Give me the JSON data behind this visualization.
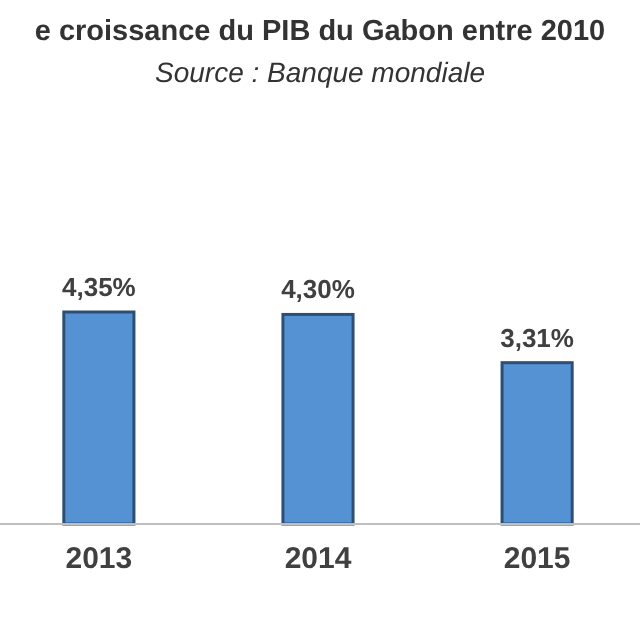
{
  "chart_data": {
    "type": "bar",
    "title": "e croissance du PIB du Gabon entre 2010",
    "subtitle": "Source : Banque mondiale",
    "categories": [
      "2013",
      "2014",
      "2015"
    ],
    "values": [
      4.35,
      4.3,
      3.31
    ],
    "value_labels": [
      "4,35%",
      "4,30%",
      "3,31%"
    ],
    "color": "#5592d4"
  }
}
